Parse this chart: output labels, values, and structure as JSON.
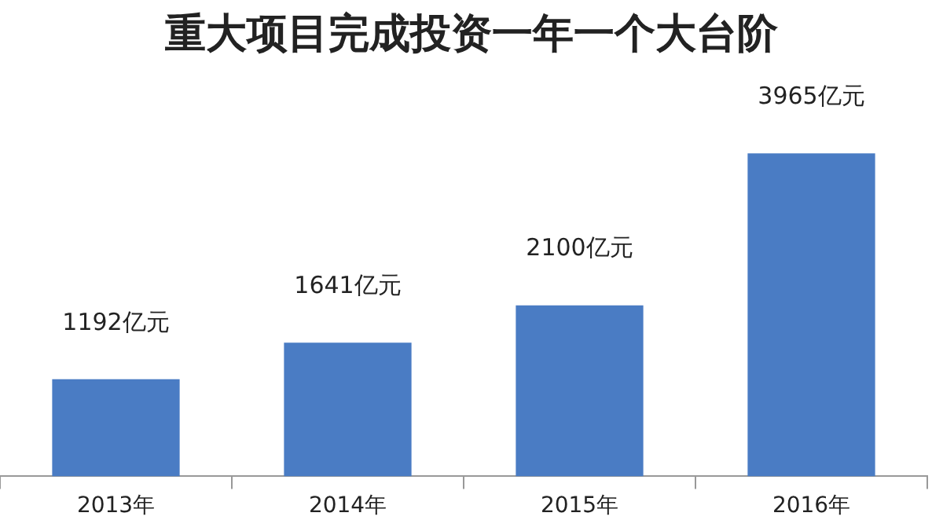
{
  "chart_data": {
    "type": "bar",
    "title": "重大项目完成投资一年一个大台阶",
    "categories": [
      "2013年",
      "2014年",
      "2015年",
      "2016年"
    ],
    "values": [
      1192,
      1641,
      2100,
      3965
    ],
    "value_labels": [
      "1192亿元",
      "1641亿元",
      "2100亿元",
      "3965亿元"
    ],
    "color": "#4a7cc4",
    "grid": false,
    "legend": false
  }
}
